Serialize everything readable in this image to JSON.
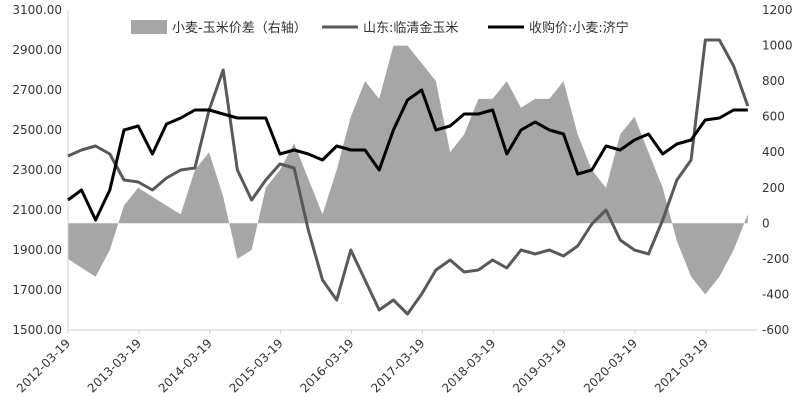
{
  "chart_data": {
    "type": "line",
    "title": "",
    "xlabel": "",
    "ylabel": "",
    "legend_position": "top",
    "grid": false,
    "x_ticks": [
      "2012-03-19",
      "2013-03-19",
      "2014-03-19",
      "2015-03-19",
      "2016-03-19",
      "2017-03-19",
      "2018-03-19",
      "2019-03-19",
      "2020-03-19",
      "2021-03-19"
    ],
    "ylim_left": [
      1500,
      3100
    ],
    "yticks_left": [
      "3100.00",
      "2900.00",
      "2700.00",
      "2500.00",
      "2300.00",
      "2100.00",
      "1900.00",
      "1700.00",
      "1500.00"
    ],
    "ylim_right": [
      -600,
      1200
    ],
    "yticks_right": [
      "1200",
      "1000",
      "800",
      "600",
      "400",
      "200",
      "0",
      "-200",
      "-400",
      "-600"
    ],
    "x": [
      2012.21,
      2012.4,
      2012.6,
      2012.8,
      2013.0,
      2013.2,
      2013.4,
      2013.6,
      2013.8,
      2014.0,
      2014.2,
      2014.4,
      2014.6,
      2014.8,
      2015.0,
      2015.2,
      2015.4,
      2015.6,
      2015.8,
      2016.0,
      2016.2,
      2016.4,
      2016.6,
      2016.8,
      2017.0,
      2017.2,
      2017.4,
      2017.6,
      2017.8,
      2018.0,
      2018.2,
      2018.4,
      2018.6,
      2018.8,
      2019.0,
      2019.2,
      2019.4,
      2019.6,
      2019.8,
      2020.0,
      2020.2,
      2020.4,
      2020.6,
      2020.8,
      2021.0,
      2021.2,
      2021.4,
      2021.6,
      2021.8
    ],
    "series": [
      {
        "name": "小麦-玉米价差（右轴）",
        "axis": "right",
        "style": "area",
        "color": "#a6a6a6",
        "values": [
          -200,
          -250,
          -300,
          -150,
          100,
          200,
          150,
          100,
          50,
          300,
          400,
          150,
          -200,
          -150,
          200,
          300,
          450,
          250,
          50,
          300,
          600,
          800,
          700,
          1000,
          1000,
          900,
          800,
          400,
          500,
          700,
          700,
          800,
          650,
          700,
          700,
          800,
          500,
          300,
          200,
          500,
          600,
          400,
          200,
          -100,
          -300,
          -400,
          -300,
          -150,
          50
        ]
      },
      {
        "name": "山东:临清金玉米",
        "axis": "left",
        "style": "line",
        "color": "#595959",
        "values": [
          2370,
          2400,
          2420,
          2380,
          2250,
          2240,
          2200,
          2260,
          2300,
          2310,
          2600,
          2800,
          2300,
          2150,
          2250,
          2330,
          2310,
          2000,
          1750,
          1650,
          1900,
          1750,
          1600,
          1650,
          1580,
          1680,
          1800,
          1850,
          1790,
          1800,
          1850,
          1810,
          1900,
          1880,
          1900,
          1870,
          1920,
          2030,
          2100,
          1950,
          1900,
          1880,
          2050,
          2250,
          2350,
          2950,
          2950,
          2820,
          2620
        ]
      },
      {
        "name": "收购价:小麦:济宁",
        "axis": "left",
        "style": "line",
        "color": "#000000",
        "values": [
          2150,
          2200,
          2050,
          2200,
          2500,
          2520,
          2380,
          2530,
          2560,
          2600,
          2600,
          2580,
          2560,
          2560,
          2560,
          2380,
          2400,
          2380,
          2350,
          2420,
          2400,
          2400,
          2300,
          2500,
          2650,
          2700,
          2500,
          2520,
          2580,
          2580,
          2600,
          2380,
          2500,
          2540,
          2500,
          2480,
          2280,
          2300,
          2420,
          2400,
          2450,
          2480,
          2380,
          2430,
          2450,
          2550,
          2560,
          2600,
          2600
        ]
      }
    ]
  }
}
